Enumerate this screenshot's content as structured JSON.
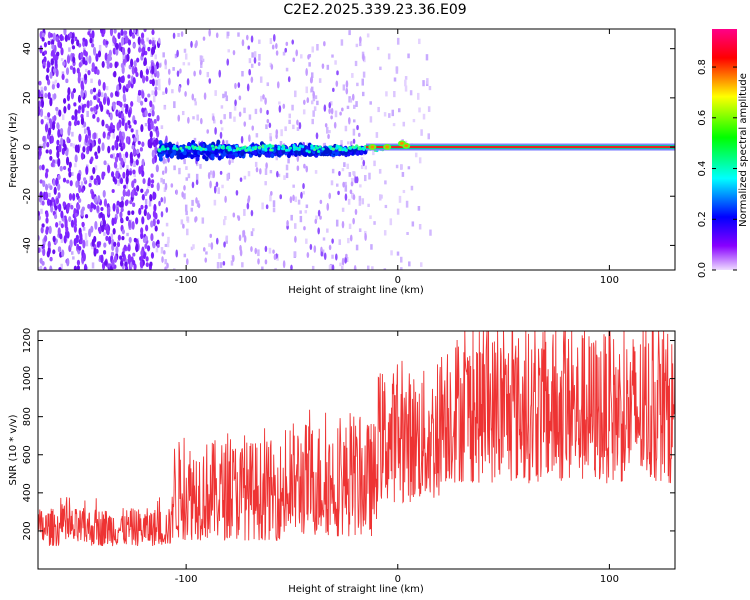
{
  "title": "C2E2.2025.339.23.36.E09",
  "chart_data": [
    {
      "type": "heatmap",
      "xlabel": "Height of straight line (km)",
      "ylabel": "Frequency (Hz)",
      "xlim": [
        -170,
        131
      ],
      "ylim": [
        -50,
        48
      ],
      "x_ticks": [
        -100,
        0,
        100
      ],
      "y_ticks": [
        -40,
        -20,
        0,
        20,
        40
      ],
      "grid": false,
      "colorbar": {
        "label": "Normalized spectral amplitude",
        "range": [
          0,
          0.95
        ],
        "ticks": [
          0,
          0.2,
          0.4,
          0.6,
          0.8
        ],
        "colormap": [
          "#e8d8ff",
          "#7a00ff",
          "#0000ff",
          "#00ffff",
          "#00ff00",
          "#ffff00",
          "#ff0000",
          "#ff00aa"
        ]
      },
      "features": {
        "noise_region_x": [
          -170,
          -113
        ],
        "scatter_band_x": [
          -113,
          -15
        ],
        "carrier_start_x": -15,
        "carrier_frequency_hz": 0
      }
    },
    {
      "type": "line",
      "xlabel": "Height of straight line (km)",
      "ylabel": "SNR (10 * v/v)",
      "xlim": [
        -170,
        131
      ],
      "ylim": [
        0,
        1250
      ],
      "x_ticks": [
        -100,
        0,
        100
      ],
      "y_ticks": [
        200,
        400,
        600,
        800,
        1000,
        1200
      ],
      "grid": false,
      "series_color": "#ee3333",
      "segments": [
        {
          "x": [
            -170,
            -107
          ],
          "mean": 200,
          "range": [
            120,
            320
          ]
        },
        {
          "x": [
            -107,
            -50
          ],
          "mean": 300,
          "range": [
            150,
            680
          ]
        },
        {
          "x": [
            -50,
            -10
          ],
          "mean": 400,
          "range": [
            170,
            780
          ]
        },
        {
          "x": [
            -10,
            20
          ],
          "mean": 650,
          "range": [
            350,
            1050
          ]
        },
        {
          "x": [
            20,
            131
          ],
          "mean": 800,
          "range": [
            450,
            1250
          ]
        }
      ]
    }
  ]
}
